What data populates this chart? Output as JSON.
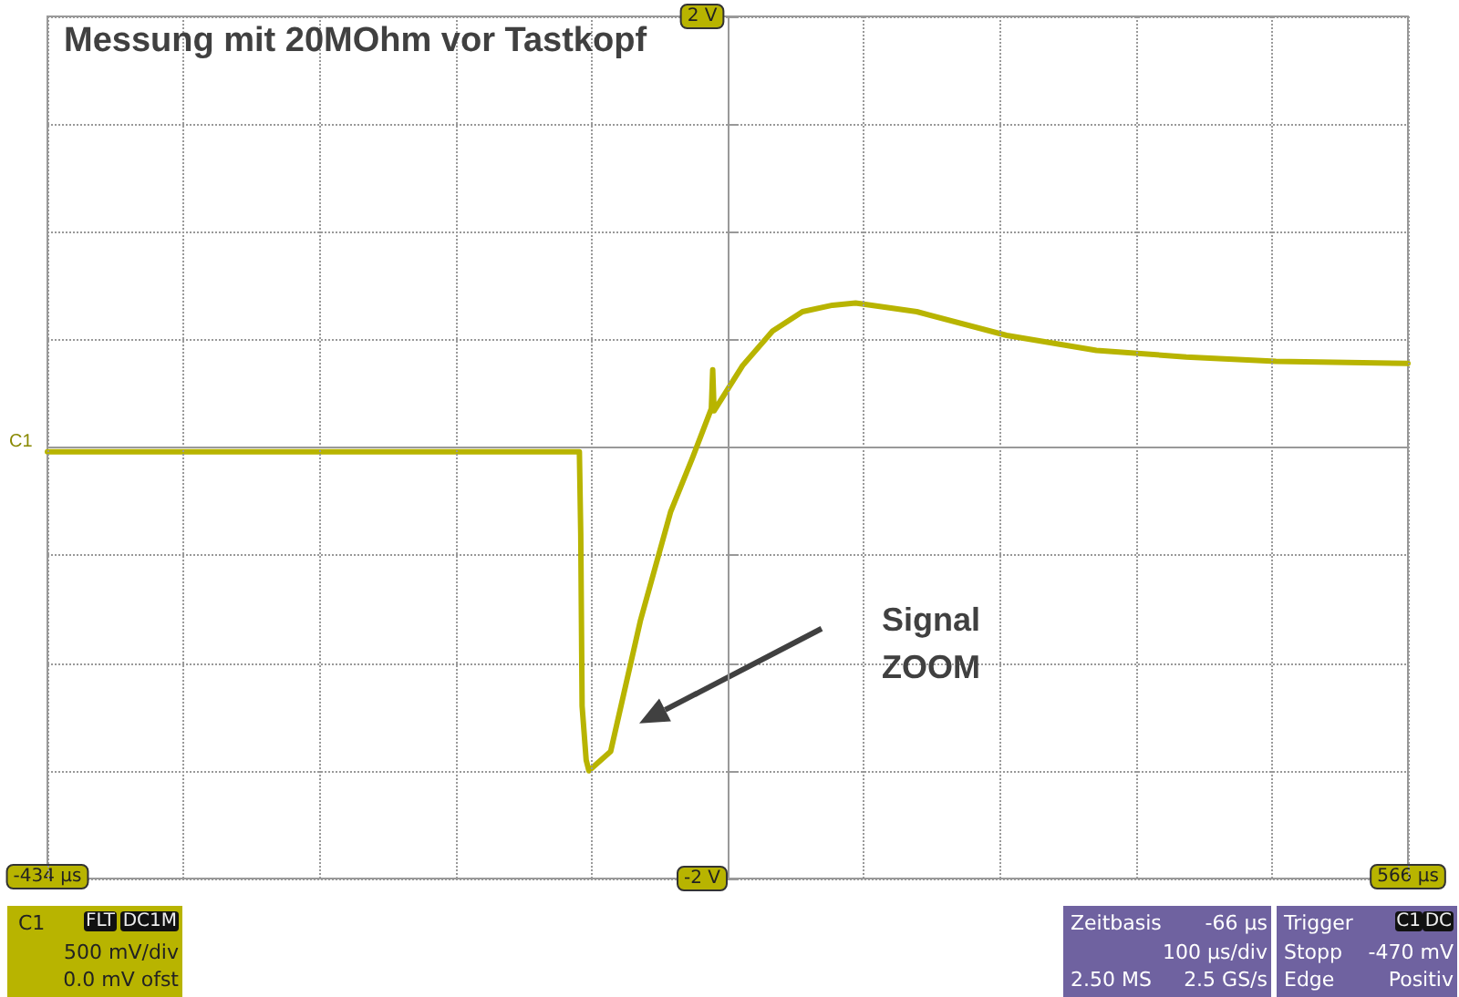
{
  "chart_data": {
    "type": "line",
    "title": "Messung mit 20MOhm vor Tastkopf",
    "x": [
      -434,
      -400,
      -300,
      -200,
      -100,
      -43,
      -42,
      -41,
      -38,
      -36,
      -20,
      2,
      24,
      40,
      54,
      55,
      56,
      77,
      99,
      121,
      143,
      160,
      205,
      271,
      337,
      403,
      469,
      566
    ],
    "series": [
      {
        "name": "C1",
        "color": "#b8b400",
        "values": [
          -0.02,
          -0.02,
          -0.02,
          -0.02,
          -0.02,
          -0.02,
          -0.4,
          -1.2,
          -1.45,
          -1.5,
          -1.41,
          -0.8,
          -0.3,
          -0.05,
          0.18,
          0.36,
          0.17,
          0.38,
          0.54,
          0.63,
          0.66,
          0.67,
          0.63,
          0.52,
          0.45,
          0.42,
          0.4,
          0.39
        ]
      }
    ],
    "xlim": [
      -434,
      566
    ],
    "xticks": [
      {
        "value": -434,
        "label": "-434 µs"
      },
      {
        "value": -334,
        "label": null
      },
      {
        "value": -234,
        "label": null
      },
      {
        "value": -134,
        "label": null
      },
      {
        "value": -34,
        "label": null
      },
      {
        "value": 66,
        "label": null
      },
      {
        "value": 166,
        "label": null
      },
      {
        "value": 266,
        "label": null
      },
      {
        "value": 366,
        "label": null
      },
      {
        "value": 466,
        "label": null
      },
      {
        "value": 566,
        "label": "566 µs"
      }
    ],
    "ylim": [
      -2,
      2
    ],
    "yticks": [
      {
        "value": -2,
        "label": "-2 V"
      },
      {
        "value": -1.5,
        "label": null
      },
      {
        "value": -1,
        "label": null
      },
      {
        "value": -0.5,
        "label": null
      },
      {
        "value": 0,
        "label": null
      },
      {
        "value": 0.5,
        "label": null
      },
      {
        "value": 1,
        "label": null
      },
      {
        "value": 1.5,
        "label": null
      },
      {
        "value": 2,
        "label": "2 V"
      }
    ],
    "grid": true,
    "marker": "none",
    "line_style": "solid",
    "legend": "left",
    "annotations": [
      "Signal\nZOOM",
      "C1",
      "FLT",
      "DC1M",
      "500 mV/div",
      "0.0 mV ofst",
      "Zeitbasis",
      "-66 µs",
      "100 µs/div",
      "2.50 MS",
      "2.5 GS/s",
      "Trigger",
      "C1",
      "DC",
      "Stopp",
      "-470 mV",
      "Edge",
      "Positiv"
    ]
  }
}
